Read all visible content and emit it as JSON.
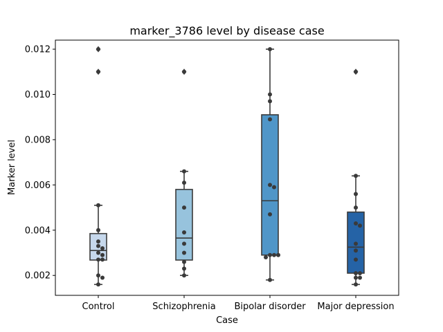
{
  "chart_data": {
    "type": "box",
    "title": "marker_3786 level by disease case",
    "xlabel": "Case",
    "ylabel": "Marker level",
    "ylim": [
      0.00112,
      0.0124
    ],
    "yticks": [
      0.002,
      0.004,
      0.006,
      0.008,
      0.01,
      0.012
    ],
    "ytick_labels": [
      "0.002",
      "0.004",
      "0.006",
      "0.008",
      "0.010",
      "0.012"
    ],
    "categories": [
      "Control",
      "Schizophrenia",
      "Bipolar disorder",
      "Major depression"
    ],
    "colors": [
      "#c6d8ec",
      "#97c3dd",
      "#5096c8",
      "#2563a6"
    ],
    "boxes": [
      {
        "category": "Control",
        "q1": 0.00268,
        "median": 0.0031,
        "q3": 0.00385,
        "whisker_low": 0.0016,
        "whisker_high": 0.0051,
        "outliers": [
          0.011,
          0.012
        ]
      },
      {
        "category": "Schizophrenia",
        "q1": 0.00268,
        "median": 0.00365,
        "q3": 0.0058,
        "whisker_low": 0.002,
        "whisker_high": 0.0066,
        "outliers": [
          0.011
        ]
      },
      {
        "category": "Bipolar disorder",
        "q1": 0.0029,
        "median": 0.0053,
        "q3": 0.0091,
        "whisker_low": 0.0018,
        "whisker_high": 0.012,
        "outliers": []
      },
      {
        "category": "Major depression",
        "q1": 0.0021,
        "median": 0.00325,
        "q3": 0.0048,
        "whisker_low": 0.0016,
        "whisker_high": 0.0064,
        "outliers": [
          0.011
        ]
      }
    ],
    "points": [
      [
        0.0051,
        0.004,
        0.0035,
        0.0033,
        0.0032,
        0.003,
        0.0029,
        0.0027,
        0.0027,
        0.002,
        0.0019,
        0.0016,
        0.011,
        0.012
      ],
      [
        0.0066,
        0.0061,
        0.005,
        0.0039,
        0.0034,
        0.003,
        0.0026,
        0.0023,
        0.002,
        0.011
      ],
      [
        0.012,
        0.01,
        0.0097,
        0.0089,
        0.006,
        0.0059,
        0.0047,
        0.0029,
        0.0029,
        0.0028,
        0.0029,
        0.0018
      ],
      [
        0.0064,
        0.0056,
        0.005,
        0.0043,
        0.0042,
        0.0034,
        0.0031,
        0.0027,
        0.0021,
        0.0021,
        0.0019,
        0.0019,
        0.0016,
        0.011
      ]
    ],
    "grid": false,
    "legend": "none"
  }
}
